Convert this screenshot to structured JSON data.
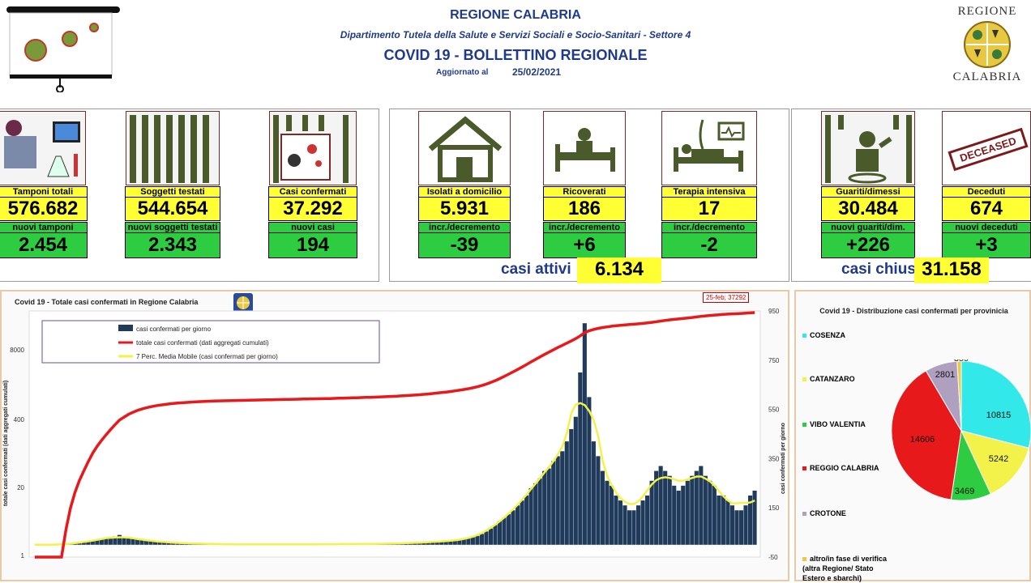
{
  "header": {
    "region": "REGIONE CALABRIA",
    "department": "Dipartimento Tutela della Salute e Servizi Sociali e Socio-Sanitari - Settore 4",
    "title": "COVID 19 - BOLLETTINO REGIONALE",
    "updated_label": "Aggiornato al",
    "updated_date": "25/02/2021",
    "logo_top": "REGIONE",
    "logo_bottom": "CALABRIA"
  },
  "stats": {
    "tamponi": {
      "label": "Tamponi totali",
      "value": "576.682",
      "sub_label": "nuovi tamponi",
      "sub_value": "2.454"
    },
    "soggetti": {
      "label": "Soggetti testati",
      "value": "544.654",
      "sub_label": "nuovi soggetti testati",
      "sub_value": "2.343"
    },
    "casi": {
      "label": "Casi confermati",
      "value": "37.292",
      "sub_label": "nuovi casi",
      "sub_value": "194"
    },
    "isolati": {
      "label": "Isolati a domicilio",
      "value": "5.931",
      "sub_label": "incr./decremento",
      "sub_value": "-39"
    },
    "ricoverati": {
      "label": "Ricoverati",
      "value": "186",
      "sub_label": "incr./decremento",
      "sub_value": "+6"
    },
    "terapia": {
      "label": "Terapia intensiva",
      "value": "17",
      "sub_label": "incr./decremento",
      "sub_value": "-2"
    },
    "guariti": {
      "label": "Guariti/dimessi",
      "value": "30.484",
      "sub_label": "nuovi guariti/dim.",
      "sub_value": "+226"
    },
    "deceduti": {
      "label": "Deceduti",
      "value": "674",
      "sub_label": "nuovi deceduti",
      "sub_value": "+3"
    },
    "casi_attivi_label": "casi attivi",
    "casi_attivi_value": "6.134",
    "casi_chiusi_label": "casi chiusi",
    "casi_chiusi_value": "31.158",
    "deceased_stamp": "DECEASED"
  },
  "colors": {
    "yellow": "#ffff33",
    "green": "#2ecc40",
    "navy": "#1f3a5a",
    "red": "#e8191b",
    "ma": "#f2f24a"
  },
  "chart_data": [
    {
      "type": "bar",
      "title": "Covid 19 - Totale casi confermati in Regione Calabria",
      "callout": "25-feb; 37292",
      "ylabel_left": "totale casi confermati (dati aggregati cumulati)",
      "ylabel_right": "casi confermati per giorno",
      "left_ticks": [
        "8000",
        "400",
        "20",
        "1"
      ],
      "right_ticks": [
        "950",
        "750",
        "550",
        "350",
        "150",
        "-50"
      ],
      "right_ylim": [
        -50,
        950
      ],
      "left_scale": "log",
      "series": [
        {
          "name": "casi confermati per giorno",
          "kind": "bar",
          "values": [
            0,
            0,
            0,
            0,
            0,
            0,
            1,
            2,
            4,
            6,
            8,
            10,
            14,
            18,
            20,
            22,
            26,
            30,
            34,
            40,
            28,
            30,
            26,
            24,
            20,
            18,
            16,
            14,
            12,
            10,
            10,
            8,
            8,
            6,
            6,
            6,
            5,
            4,
            4,
            4,
            3,
            3,
            2,
            2,
            2,
            2,
            2,
            2,
            2,
            2,
            2,
            2,
            2,
            2,
            2,
            2,
            2,
            2,
            2,
            2,
            2,
            2,
            2,
            2,
            2,
            2,
            2,
            3,
            3,
            3,
            3,
            3,
            3,
            3,
            3,
            3,
            4,
            4,
            4,
            5,
            5,
            5,
            6,
            6,
            7,
            8,
            8,
            10,
            10,
            12,
            12,
            14,
            14,
            16,
            18,
            20,
            22,
            26,
            30,
            36,
            44,
            54,
            66,
            80,
            96,
            110,
            124,
            140,
            160,
            180,
            200,
            230,
            250,
            270,
            300,
            310,
            340,
            360,
            380,
            420,
            470,
            520,
            700,
            900,
            600,
            420,
            360,
            300,
            260,
            240,
            200,
            180,
            160,
            140,
            140,
            160,
            180,
            200,
            260,
            300,
            320,
            300,
            280,
            240,
            220,
            240,
            260,
            280,
            300,
            320,
            280,
            260,
            240,
            200,
            200,
            180,
            160,
            140,
            140,
            160,
            200,
            220
          ],
          "note_values": "approx daily cases, peak ~930"
        },
        {
          "name": "totale casi confermati (dati aggregati cumulati)",
          "kind": "line",
          "end_value": 37292
        },
        {
          "name": "7 Perc. Media Mobile (casi confermati per giorno)",
          "kind": "line"
        }
      ]
    },
    {
      "type": "pie",
      "title": "Covid 19 - Distribuzione casi confermati per provinicia",
      "slices": [
        {
          "name": "COSENZA",
          "value": 10815,
          "color": "#33e8e8"
        },
        {
          "name": "CATANZARO",
          "value": 5242,
          "color": "#f2f24a"
        },
        {
          "name": "VIBO VALENTIA",
          "value": 3469,
          "color": "#2ecc40"
        },
        {
          "name": "REGGIO CALABRIA",
          "value": 14606,
          "color": "#e8191b"
        },
        {
          "name": "CROTONE",
          "value": 2801,
          "color": "#b0a0c0"
        },
        {
          "name": "altro/in fase di verifica (altra Regione/ Stato Estero e sbarchi)",
          "value": 359,
          "color": "#f2c744"
        }
      ]
    }
  ]
}
